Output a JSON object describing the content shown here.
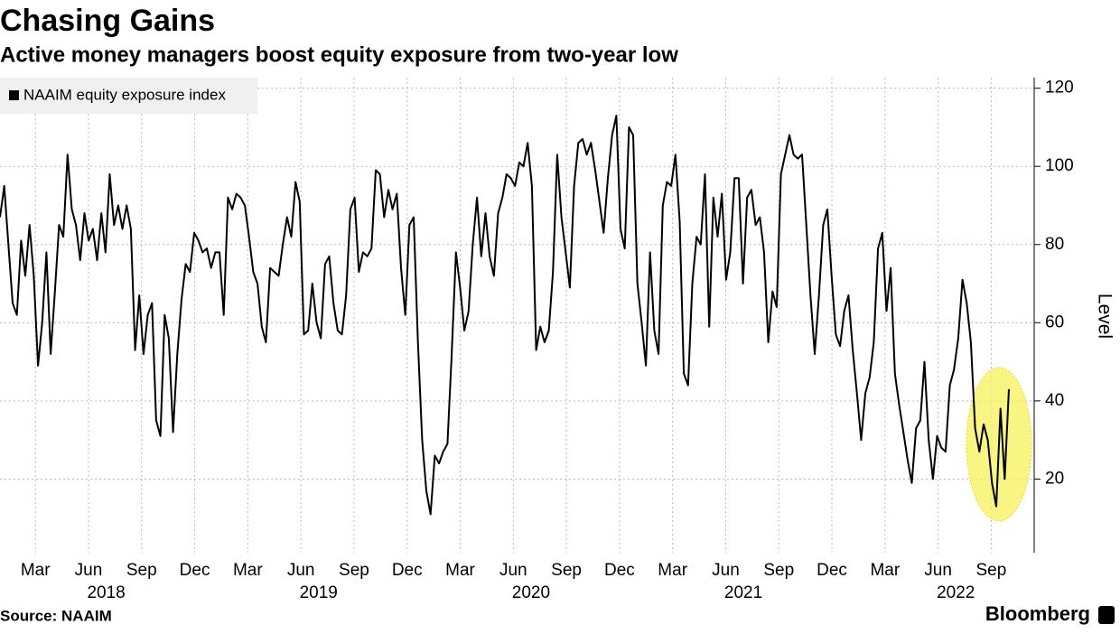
{
  "chart_data": {
    "type": "line",
    "title": "Chasing Gains",
    "subtitle": "Active money managers boost equity exposure from two-year low",
    "source": "Source: NAAIM",
    "brand": "Bloomberg",
    "y_label": "Level",
    "legend": "upper left",
    "grid": true,
    "xlim": [
      "2018-01",
      "2022-10"
    ],
    "xticks": [
      {
        "value": "2018-03",
        "label": "Mar"
      },
      {
        "value": "2018-06",
        "label": "Jun"
      },
      {
        "value": "2018-09",
        "label": "Sep"
      },
      {
        "value": "2018-12",
        "label": "Dec"
      },
      {
        "value": "2019-03",
        "label": "Mar"
      },
      {
        "value": "2019-06",
        "label": "Jun"
      },
      {
        "value": "2019-09",
        "label": "Sep"
      },
      {
        "value": "2019-12",
        "label": "Dec"
      },
      {
        "value": "2020-03",
        "label": "Mar"
      },
      {
        "value": "2020-06",
        "label": "Jun"
      },
      {
        "value": "2020-09",
        "label": "Sep"
      },
      {
        "value": "2020-12",
        "label": "Dec"
      },
      {
        "value": "2021-03",
        "label": "Mar"
      },
      {
        "value": "2021-06",
        "label": "Jun"
      },
      {
        "value": "2021-09",
        "label": "Sep"
      },
      {
        "value": "2021-12",
        "label": "Dec"
      },
      {
        "value": "2022-03",
        "label": "Mar"
      },
      {
        "value": "2022-06",
        "label": "Jun"
      },
      {
        "value": "2022-09",
        "label": "Sep"
      }
    ],
    "year_labels": [
      2018,
      2019,
      2020,
      2021,
      2022
    ],
    "ylim": [
      0,
      122
    ],
    "yticks": [
      20,
      40,
      60,
      80,
      100,
      120
    ],
    "series": [
      {
        "name": "NAAIM equity exposure index",
        "color": "#000000",
        "values": [
          87,
          95,
          80,
          65,
          62,
          81,
          72,
          85,
          72,
          49,
          60,
          78,
          52,
          68,
          85,
          82,
          103,
          89,
          85,
          76,
          88,
          81,
          84,
          76,
          88,
          78,
          98,
          85,
          90,
          84,
          90,
          84,
          53,
          67,
          52,
          62,
          65,
          35,
          31,
          62,
          56,
          32,
          52,
          66,
          75,
          73,
          83,
          81,
          78,
          79,
          74,
          78,
          78,
          62,
          92,
          89,
          93,
          92,
          90,
          82,
          73,
          70,
          59,
          55,
          74,
          73,
          72,
          80,
          87,
          82,
          96,
          91,
          57,
          58,
          70,
          60,
          56,
          75,
          77,
          65,
          58,
          57,
          67,
          89,
          92,
          73,
          78,
          77,
          79,
          99,
          98,
          87,
          94,
          89,
          93,
          74,
          62,
          85,
          87,
          55,
          30,
          17,
          11,
          26,
          24,
          27,
          29,
          52,
          78,
          69,
          58,
          63,
          80,
          92,
          77,
          88,
          77,
          72,
          88,
          92,
          98,
          97,
          95,
          101,
          100,
          106,
          95,
          53,
          59,
          55,
          58,
          73,
          103,
          87,
          78,
          69,
          95,
          106,
          107,
          103,
          106,
          99,
          91,
          83,
          97,
          108,
          113,
          84,
          79,
          110,
          108,
          70,
          60,
          49,
          78,
          58,
          52,
          90,
          96,
          95,
          103,
          86,
          47,
          44,
          70,
          82,
          80,
          98,
          59,
          92,
          82,
          93,
          71,
          78,
          97,
          97,
          70,
          92,
          94,
          85,
          87,
          78,
          55,
          68,
          64,
          98,
          103,
          108,
          103,
          102,
          103,
          85,
          67,
          52,
          67,
          85,
          89,
          72,
          57,
          54,
          63,
          67,
          53,
          42,
          30,
          42,
          46,
          55,
          79,
          83,
          63,
          74,
          47,
          39,
          32,
          25,
          19,
          33,
          35,
          50,
          30,
          20,
          31,
          28,
          27,
          44,
          48,
          56,
          71,
          65,
          55,
          33,
          27,
          34,
          30,
          19,
          13,
          38,
          20,
          43
        ]
      }
    ]
  }
}
